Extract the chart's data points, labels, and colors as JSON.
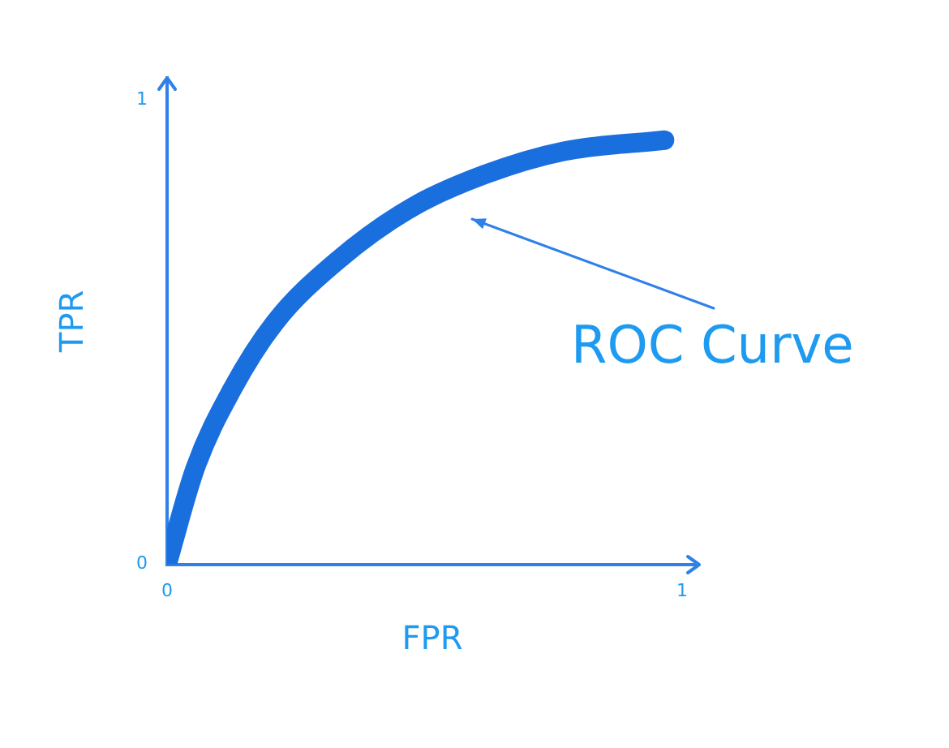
{
  "chart_data": {
    "type": "line",
    "xlabel": "FPR",
    "ylabel": "TPR",
    "xlim": [
      0,
      1.03
    ],
    "ylim": [
      0,
      1.047
    ],
    "xticks": [
      0,
      1
    ],
    "yticks": [
      0,
      1
    ],
    "series": [
      {
        "color": "#1a6fdf",
        "x": [
          0,
          0.055,
          0.126,
          0.209,
          0.331,
          0.475,
          0.617,
          0.77,
          0.966
        ],
        "values": [
          0,
          0.208,
          0.376,
          0.52,
          0.654,
          0.768,
          0.839,
          0.889,
          0.913
        ]
      }
    ],
    "annotations": [
      "ROC Curve"
    ],
    "grid": false,
    "legend": false,
    "marker": "none",
    "line_style": "solid"
  }
}
